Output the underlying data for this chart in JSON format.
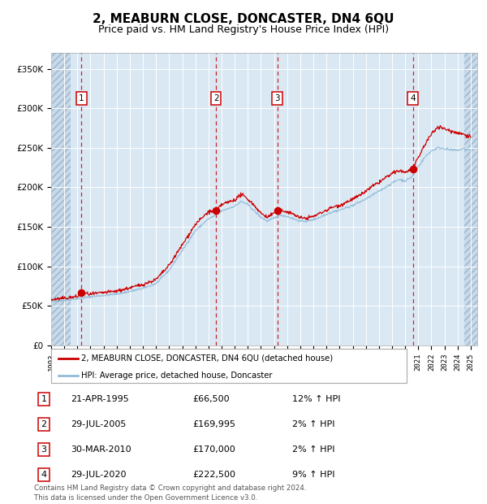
{
  "title": "2, MEABURN CLOSE, DONCASTER, DN4 6QU",
  "subtitle": "Price paid vs. HM Land Registry's House Price Index (HPI)",
  "title_fontsize": 11,
  "subtitle_fontsize": 9,
  "xlim_start": 1993.0,
  "xlim_end": 2025.5,
  "ylim_min": 0,
  "ylim_max": 370000,
  "yticks": [
    0,
    50000,
    100000,
    150000,
    200000,
    250000,
    300000,
    350000
  ],
  "ytick_labels": [
    "£0",
    "£50K",
    "£100K",
    "£150K",
    "£200K",
    "£250K",
    "£300K",
    "£350K"
  ],
  "xticks": [
    1993,
    1994,
    1995,
    1996,
    1997,
    1998,
    1999,
    2000,
    2001,
    2002,
    2003,
    2004,
    2005,
    2006,
    2007,
    2008,
    2009,
    2010,
    2011,
    2012,
    2013,
    2014,
    2015,
    2016,
    2017,
    2018,
    2019,
    2020,
    2021,
    2022,
    2023,
    2024,
    2025
  ],
  "hatch_left_end": 1994.5,
  "hatch_right_start": 2024.5,
  "sale_dates": [
    1995.31,
    2005.58,
    2010.25,
    2020.58
  ],
  "sale_prices": [
    66500,
    169995,
    170000,
    222500
  ],
  "sale_labels": [
    "1",
    "2",
    "3",
    "4"
  ],
  "hpi_color": "#92bcd8",
  "price_color": "#cc0000",
  "dashed_color": "#cc0000",
  "bg_color": "#dae8f4",
  "hatch_bg_color": "#c8d9e8",
  "grid_color": "#ffffff",
  "legend_label_price": "2, MEABURN CLOSE, DONCASTER, DN4 6QU (detached house)",
  "legend_label_hpi": "HPI: Average price, detached house, Doncaster",
  "table_entries": [
    {
      "num": "1",
      "date": "21-APR-1995",
      "price": "£66,500",
      "pct": "12% ↑ HPI"
    },
    {
      "num": "2",
      "date": "29-JUL-2005",
      "price": "£169,995",
      "pct": "2% ↑ HPI"
    },
    {
      "num": "3",
      "date": "30-MAR-2010",
      "price": "£170,000",
      "pct": "2% ↑ HPI"
    },
    {
      "num": "4",
      "date": "29-JUL-2020",
      "price": "£222,500",
      "pct": "9% ↑ HPI"
    }
  ],
  "footnote": "Contains HM Land Registry data © Crown copyright and database right 2024.\nThis data is licensed under the Open Government Licence v3.0.",
  "hpi_anchors": [
    [
      1993.0,
      55000
    ],
    [
      1994.0,
      57000
    ],
    [
      1995.0,
      59000
    ],
    [
      1996.0,
      61500
    ],
    [
      1997.0,
      63000
    ],
    [
      1998.0,
      65000
    ],
    [
      1999.0,
      68000
    ],
    [
      2000.0,
      72000
    ],
    [
      2001.0,
      78000
    ],
    [
      2002.0,
      95000
    ],
    [
      2003.0,
      120000
    ],
    [
      2004.0,
      145000
    ],
    [
      2005.0,
      160000
    ],
    [
      2005.5,
      164000
    ],
    [
      2006.0,
      170000
    ],
    [
      2007.0,
      176000
    ],
    [
      2007.5,
      182000
    ],
    [
      2008.0,
      178000
    ],
    [
      2008.5,
      170000
    ],
    [
      2009.0,
      162000
    ],
    [
      2009.5,
      157000
    ],
    [
      2010.0,
      161000
    ],
    [
      2010.5,
      165000
    ],
    [
      2011.0,
      163000
    ],
    [
      2011.5,
      160000
    ],
    [
      2012.0,
      157000
    ],
    [
      2012.5,
      157000
    ],
    [
      2013.0,
      159000
    ],
    [
      2013.5,
      162000
    ],
    [
      2014.0,
      166000
    ],
    [
      2014.5,
      169000
    ],
    [
      2015.0,
      171000
    ],
    [
      2015.5,
      174000
    ],
    [
      2016.0,
      177000
    ],
    [
      2016.5,
      181000
    ],
    [
      2017.0,
      185000
    ],
    [
      2017.5,
      190000
    ],
    [
      2018.0,
      195000
    ],
    [
      2018.5,
      200000
    ],
    [
      2019.0,
      205000
    ],
    [
      2019.5,
      210000
    ],
    [
      2020.0,
      208000
    ],
    [
      2020.5,
      213000
    ],
    [
      2021.0,
      226000
    ],
    [
      2021.5,
      238000
    ],
    [
      2022.0,
      246000
    ],
    [
      2022.5,
      250000
    ],
    [
      2023.0,
      249000
    ],
    [
      2023.5,
      247000
    ],
    [
      2024.0,
      247000
    ],
    [
      2024.5,
      249000
    ],
    [
      2025.0,
      247000
    ]
  ],
  "price_anchors": [
    [
      1993.0,
      57500
    ],
    [
      1994.0,
      59500
    ],
    [
      1995.0,
      61500
    ],
    [
      1995.31,
      66500
    ],
    [
      1996.0,
      64500
    ],
    [
      1997.0,
      66500
    ],
    [
      1998.0,
      68500
    ],
    [
      1999.0,
      72500
    ],
    [
      2000.0,
      77000
    ],
    [
      2001.0,
      83000
    ],
    [
      2002.0,
      101000
    ],
    [
      2003.0,
      127000
    ],
    [
      2004.0,
      153000
    ],
    [
      2005.0,
      169000
    ],
    [
      2005.58,
      169995
    ],
    [
      2006.0,
      178000
    ],
    [
      2007.0,
      184000
    ],
    [
      2007.5,
      191000
    ],
    [
      2008.0,
      185000
    ],
    [
      2008.5,
      177000
    ],
    [
      2009.0,
      167000
    ],
    [
      2009.5,
      162000
    ],
    [
      2010.0,
      167500
    ],
    [
      2010.25,
      170000
    ],
    [
      2010.5,
      171000
    ],
    [
      2011.0,
      169000
    ],
    [
      2011.5,
      166000
    ],
    [
      2012.0,
      161000
    ],
    [
      2012.5,
      161000
    ],
    [
      2013.0,
      163000
    ],
    [
      2013.5,
      167000
    ],
    [
      2014.0,
      171000
    ],
    [
      2014.5,
      175000
    ],
    [
      2015.0,
      177000
    ],
    [
      2015.5,
      181000
    ],
    [
      2016.0,
      185000
    ],
    [
      2016.5,
      189000
    ],
    [
      2017.0,
      195000
    ],
    [
      2017.5,
      201000
    ],
    [
      2018.0,
      206000
    ],
    [
      2018.5,
      212000
    ],
    [
      2019.0,
      217000
    ],
    [
      2019.5,
      221000
    ],
    [
      2020.0,
      219000
    ],
    [
      2020.58,
      222500
    ],
    [
      2021.0,
      237000
    ],
    [
      2021.5,
      254000
    ],
    [
      2022.0,
      267000
    ],
    [
      2022.5,
      277000
    ],
    [
      2023.0,
      274000
    ],
    [
      2023.5,
      271000
    ],
    [
      2024.0,
      269000
    ],
    [
      2024.5,
      267000
    ],
    [
      2025.0,
      264000
    ]
  ]
}
